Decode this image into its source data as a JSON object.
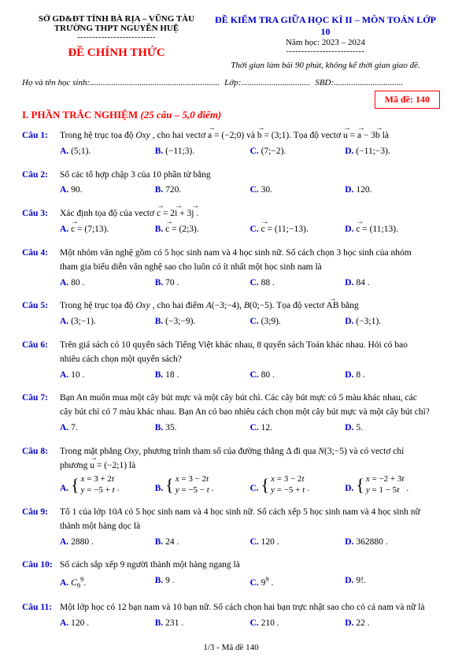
{
  "header": {
    "left_line1": "SỞ GD&ĐT TỈNH BÀ RỊA – VŨNG TÀU",
    "left_line2": "TRƯỜNG THPT NGUYỄN HUỆ",
    "left_title": "ĐỀ CHÍNH THỨC",
    "right_line1": "ĐỀ KIỂM TRA GIỮA HỌC KÌ II – MÔN TOÁN LỚP 10",
    "right_line2": "Năm học: 2023 – 2024",
    "right_line3": "Thời gian làm bài 90 phút, không kể thời gian giao đề.",
    "info_name": "Họ và tên học sinh:",
    "info_class": "Lớp:",
    "info_sbd": "SBD:",
    "code_label": "Mã đề: 140"
  },
  "section": {
    "title": "I. PHẦN TRẮC NGHIỆM",
    "subtitle": "(25 câu – 5,0 điểm)"
  },
  "questions": [
    {
      "label": "Câu 1:",
      "text_html": "Trong hệ trục tọa độ <i>Oxy</i> , cho hai vectơ <span class='vec'>a</span> = (−2;0) và <span class='vec'>b</span> = (3;1). Tọa độ vectơ <span class='vec'>u</span> = <span class='vec'>a</span> − 3<span class='vec'>b</span> là",
      "choices": [
        "(5;1).",
        "(−11;3).",
        "(7;−2).",
        "(−11;−3)."
      ]
    },
    {
      "label": "Câu 2:",
      "text_html": "Số các tổ hợp chập 3 của 10 phần tử bằng",
      "choices": [
        "90.",
        "720.",
        "30.",
        "120."
      ]
    },
    {
      "label": "Câu 3:",
      "text_html": "Xác định tọa độ của vectơ <span class='vec'>c</span> = 2<span class='vec'>i</span> + 3<span class='vec'>j</span> .",
      "choices": [
        "<span class='vec'>c</span> = (7;13).",
        "<span class='vec'>c</span> = (2;3).",
        "<span class='vec'>c</span> = (11;−13).",
        "<span class='vec'>c</span> = (11;13)."
      ]
    },
    {
      "label": "Câu 4:",
      "text_html": "Một nhóm văn nghệ gồm có 5 học sinh nam và 4 học sinh nữ. Số cách chọn 3 học sinh của nhóm tham gia biểu diễn văn nghệ sao cho luôn có ít nhất một học sinh nam là",
      "choices": [
        "80 .",
        "70 .",
        "88 .",
        "84 ."
      ]
    },
    {
      "label": "Câu 5:",
      "text_html": "Trong hệ trục tọa độ <i>Oxy</i> , cho hai điểm <i>A</i>(−3;−4), <i>B</i>(0;−5). Tọa độ vectơ <span class='vec'>AB</span> bằng",
      "choices": [
        "(3;−1).",
        "(−3;−9).",
        "(3;9).",
        "(−3;1)."
      ]
    },
    {
      "label": "Câu 6:",
      "text_html": "Trên giá sách có 10 quyển sách Tiếng Việt khác nhau, 8 quyển sách Toán khác nhau. Hỏi có bao nhiêu cách chọn một quyển sách?",
      "choices": [
        "10 .",
        "18 .",
        "80 .",
        "8 ."
      ]
    },
    {
      "label": "Câu 7:",
      "text_html": "Bạn An muốn mua một cây bút mực và một cây bút chì. Các cây bút mực có 5 màu khác nhau, các cây bút chì có 7 màu khác nhau. Bạn An có bao nhiêu cách chọn một cây bút mực và một cây bút chì?",
      "choices": [
        "7.",
        "35.",
        "12.",
        "5."
      ]
    },
    {
      "label": "Câu 8:",
      "text_html": "Trong mặt phẳng <i>Oxy</i>, phương trình tham số của đường thẳng Δ đi qua <i>N</i>(3;−5) và có vectơ chỉ phương <span class='vec'>u</span> = (−2;1) là",
      "choices_html": [
        "<span class='brace-eq'><span class='br'>{</span><span class='rows'><i>x</i> = 3 + 2<i>t</i><br><i>y</i> = −5 + <i>t</i></span></span> .",
        "<span class='brace-eq'><span class='br'>{</span><span class='rows'><i>x</i> = 3 − 2<i>t</i><br><i>y</i> = −5 − <i>t</i></span></span> .",
        "<span class='brace-eq'><span class='br'>{</span><span class='rows'><i>x</i> = 3 − 2<i>t</i><br><i>y</i> = −5 + <i>t</i></span></span> .",
        "<span class='brace-eq'><span class='br'>{</span><span class='rows'><i>x</i> = −2 + 3<i>t</i><br><i>y</i> = 1 − 5<i>t</i></span></span> ."
      ]
    },
    {
      "label": "Câu 9:",
      "text_html": "Tổ 1 của lớp 10<i>A</i> có 5 học sinh nam và 4 học sinh nữ. Số cách xếp 5 học sinh nam và 4 học sinh nữ thành một hàng dọc là",
      "choices": [
        "2880 .",
        "24 .",
        "120 .",
        "362880 ."
      ]
    },
    {
      "label": "Câu 10:",
      "text_html": "Số cách sắp xếp 9 người thành một hàng ngang là",
      "choices_html": [
        "<i>C</i><span class='sub'>9</span><span class='sup'>9</span>.",
        "9 .",
        "9<span class='sup'>9</span> .",
        "9!."
      ]
    },
    {
      "label": "Câu 11:",
      "text_html": "Một lớp học có 12 bạn nam và 10 bạn nữ. Số cách chọn hai bạn trực nhật sao cho có cả nam và nữ là",
      "choices": [
        "120 .",
        "231 .",
        "210 .",
        "22 ."
      ]
    }
  ],
  "footer": "1/3 - Mã đề 140"
}
